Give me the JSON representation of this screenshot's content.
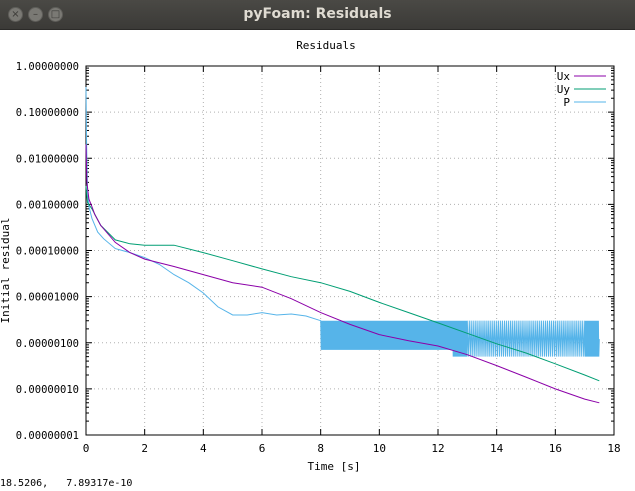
{
  "window": {
    "title": "pyFoam: Residuals",
    "close_glyph": "×",
    "minimize_glyph": "–",
    "maximize_glyph": "□"
  },
  "status_bar": {
    "coords": "18.5206,   7.89317e-10"
  },
  "chart_data": {
    "type": "line",
    "title": "Residuals",
    "xlabel": "Time [s]",
    "ylabel": "Initial residual",
    "xlim": [
      0,
      18
    ],
    "ylim": [
      1e-08,
      1
    ],
    "y_scale": "log",
    "grid": true,
    "legend_position": "top-right",
    "x_ticks": [
      "0",
      "2",
      "4",
      "6",
      "8",
      "10",
      "12",
      "14",
      "16",
      "18"
    ],
    "y_ticks": [
      "1.00000000",
      "0.10000000",
      "0.01000000",
      "0.00100000",
      "0.00010000",
      "0.00001000",
      "0.00000100",
      "0.00000010",
      "0.00000001"
    ],
    "series": [
      {
        "name": "Ux",
        "color": "#8b00a8",
        "points": [
          [
            0,
            0.02
          ],
          [
            0.03,
            0.003
          ],
          [
            0.1,
            0.0013
          ],
          [
            0.2,
            0.0009
          ],
          [
            0.3,
            0.0006
          ],
          [
            0.5,
            0.00035
          ],
          [
            1,
            0.00015
          ],
          [
            1.5,
            9e-05
          ],
          [
            2,
            6.5e-05
          ],
          [
            3,
            4.5e-05
          ],
          [
            4,
            3e-05
          ],
          [
            5,
            2e-05
          ],
          [
            6,
            1.6e-05
          ],
          [
            7,
            9e-06
          ],
          [
            8,
            4.5e-06
          ],
          [
            9,
            2.5e-06
          ],
          [
            10,
            1.5e-06
          ],
          [
            11,
            1.1e-06
          ],
          [
            12,
            8.5e-07
          ],
          [
            13,
            5.5e-07
          ],
          [
            14,
            3.2e-07
          ],
          [
            15,
            1.8e-07
          ],
          [
            16,
            1e-07
          ],
          [
            17,
            6e-08
          ],
          [
            17.5,
            5e-08
          ]
        ]
      },
      {
        "name": "Uy",
        "color": "#009e73",
        "points": [
          [
            0,
            0.0025
          ],
          [
            0.05,
            0.0011
          ],
          [
            0.2,
            0.0008
          ],
          [
            0.5,
            0.00035
          ],
          [
            1,
            0.00017
          ],
          [
            1.5,
            0.00014
          ],
          [
            2,
            0.00013
          ],
          [
            3,
            0.00013
          ],
          [
            4,
            9e-05
          ],
          [
            5,
            6e-05
          ],
          [
            6,
            4e-05
          ],
          [
            7,
            2.7e-05
          ],
          [
            8,
            2e-05
          ],
          [
            9,
            1.3e-05
          ],
          [
            10,
            7.5e-06
          ],
          [
            11,
            4.5e-06
          ],
          [
            12,
            2.7e-06
          ],
          [
            13,
            1.6e-06
          ],
          [
            14,
            9.5e-07
          ],
          [
            15,
            6e-07
          ],
          [
            16,
            3.5e-07
          ],
          [
            17,
            2e-07
          ],
          [
            17.5,
            1.5e-07
          ]
        ]
      },
      {
        "name": "P",
        "color": "#56b4e9",
        "points": [
          [
            0,
            0.35
          ],
          [
            0.02,
            0.02
          ],
          [
            0.05,
            0.002
          ],
          [
            0.1,
            0.0009
          ],
          [
            0.2,
            0.0005
          ],
          [
            0.4,
            0.00025
          ],
          [
            0.6,
            0.00018
          ],
          [
            1,
            0.00011
          ],
          [
            1.5,
            9e-05
          ],
          [
            2,
            7e-05
          ],
          [
            2.5,
            5e-05
          ],
          [
            3,
            3e-05
          ],
          [
            3.5,
            2e-05
          ],
          [
            4,
            1.2e-05
          ],
          [
            4.5,
            6e-06
          ],
          [
            5,
            4e-06
          ],
          [
            5.5,
            4e-06
          ],
          [
            6,
            4.5e-06
          ],
          [
            6.5,
            4e-06
          ],
          [
            7,
            4.2e-06
          ],
          [
            7.5,
            3.8e-06
          ],
          [
            8,
            3.5e-06
          ],
          [
            8.5,
            3e-06
          ],
          [
            9,
            2.5e-06
          ],
          [
            9.5,
            2e-06
          ],
          [
            10,
            1.7e-06
          ],
          [
            10.5,
            1.4e-06
          ],
          [
            11,
            1.2e-06
          ],
          [
            11.5,
            1.1e-06
          ],
          [
            12,
            1e-06
          ],
          [
            12.5,
            1.2e-06
          ],
          [
            13,
            1.2e-06
          ],
          [
            14,
            1.2e-06
          ],
          [
            15,
            1.2e-06
          ],
          [
            16,
            1.2e-06
          ],
          [
            17,
            1.2e-06
          ],
          [
            17.5,
            1.2e-06
          ]
        ],
        "oscillation": [
          {
            "from": 8,
            "to": 12.5,
            "low": 7e-07,
            "high": 3e-06
          },
          {
            "from": 12.5,
            "to": 17.5,
            "low": 5e-07,
            "high": 3e-06
          }
        ]
      }
    ]
  }
}
